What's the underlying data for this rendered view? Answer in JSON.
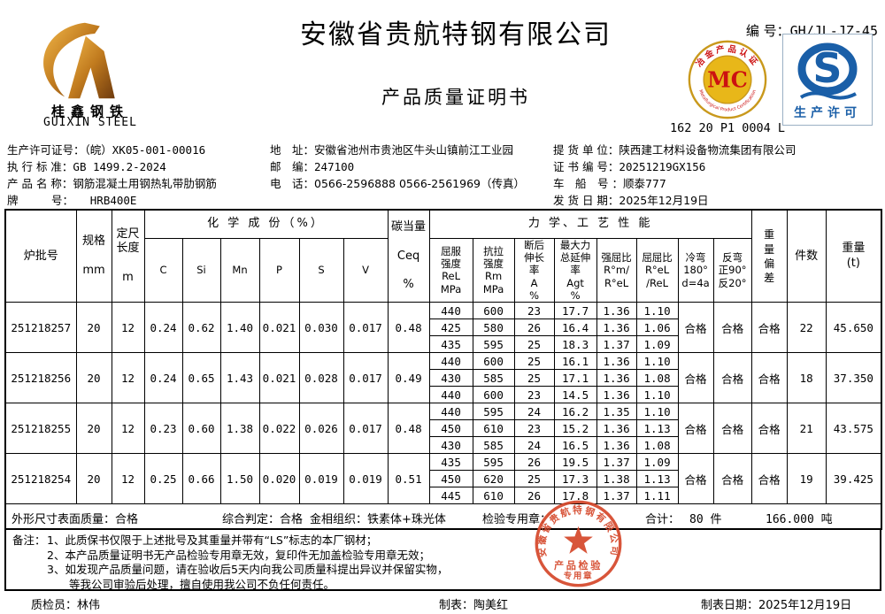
{
  "colors": {
    "stamp_red": "#d5472a",
    "mc_gold": "#d9a21a",
    "mc_red": "#cc1111",
    "qs_blue": "#1a5fa8",
    "logo_gold": "#c07a1e"
  },
  "header": {
    "company_name": "安徽省贵航特钢有限公司",
    "doc_title": "产品质量证明书",
    "doc_no_label": "编 号：",
    "doc_no_value": "GH/JL-JZ-45",
    "logo_text_cn": "桂鑫钢铁",
    "logo_text_en": "GUIXIN STEEL",
    "mc_letters": "MC",
    "mc_ring_top": "冶金产品认证",
    "mc_ring_bottom": "Metallurgical Product Certification",
    "mc_code": "162 20 P1 0004 L",
    "qs_letter": "S",
    "qs_caption": "生产许可"
  },
  "info": {
    "left": [
      {
        "label": "生产许可证号：",
        "value": "（皖）XK05-001-00016"
      },
      {
        "label": "执 行 标 准：",
        "value": "GB 1499.2-2024"
      },
      {
        "label": "产 品 名 称：",
        "value": "钢筋混凝土用钢热轧带肋钢筋"
      },
      {
        "label": "牌　　　号：",
        "value": "　　HRB400E"
      }
    ],
    "middle": [
      {
        "label": "地　址：",
        "value": "安徽省池州市贵池区牛头山镇前江工业园"
      },
      {
        "label": "邮　编：",
        "value": "247100"
      },
      {
        "label": "电　话：",
        "value": "0566-2596888  0566-2561969（传真）"
      }
    ],
    "right": [
      {
        "label": "提 货 单 位：",
        "value": "陕西建工材料设备物流集团有限公司"
      },
      {
        "label": "证 书 编 号：",
        "value": "20251219GX156"
      },
      {
        "label": "车　船　号 ：",
        "value": "顺泰777"
      },
      {
        "label": "发 货 日 期：",
        "value": "2025年12月19日"
      }
    ]
  },
  "table": {
    "group_chem": "化 学 成 份（%）",
    "group_mech": "力 学、工 艺 性 能",
    "head": {
      "heat": "炉批号",
      "spec": "规格\n\nmm",
      "length": "定尺\n长度\n\nm",
      "chem_cols": [
        "C",
        "Si",
        "Mn",
        "P",
        "S",
        "V"
      ],
      "ceq": "碳当量\n\nCeq\n\n%",
      "mech_cols": [
        "屈服\n强度\nReL\nMPa",
        "抗拉\n强度\nRm\nMPa",
        "断后\n伸长\n率\nA\n%",
        "最大力\n总延伸\n率\nAgt\n%",
        "强屈比\nR°m/\nR°eL",
        "屈屈比\nR°eL\n/ReL",
        "冷弯\n180°\nd=4a",
        "反弯\n正90°\n反20°"
      ],
      "weight_dev": "重\n量\n偏\n差",
      "pieces": "件数",
      "weight": "重量\n(t)"
    },
    "batches": [
      {
        "heat_no": "251218257",
        "spec": "20",
        "length": "12",
        "chem": [
          "0.24",
          "0.62",
          "1.40",
          "0.021",
          "0.030",
          "0.017"
        ],
        "ceq": "0.48",
        "mech": [
          [
            "440",
            "600",
            "23",
            "17.7",
            "1.36",
            "1.10"
          ],
          [
            "425",
            "580",
            "26",
            "16.4",
            "1.36",
            "1.06"
          ],
          [
            "435",
            "595",
            "25",
            "18.3",
            "1.37",
            "1.09"
          ]
        ],
        "cold_bend": "合格",
        "reverse_bend": "合格",
        "weight_dev": "合格",
        "pieces": "22",
        "weight": "45.650"
      },
      {
        "heat_no": "251218256",
        "spec": "20",
        "length": "12",
        "chem": [
          "0.24",
          "0.65",
          "1.43",
          "0.021",
          "0.028",
          "0.017"
        ],
        "ceq": "0.49",
        "mech": [
          [
            "440",
            "600",
            "25",
            "16.1",
            "1.36",
            "1.10"
          ],
          [
            "430",
            "585",
            "25",
            "17.1",
            "1.36",
            "1.08"
          ],
          [
            "440",
            "600",
            "23",
            "14.5",
            "1.36",
            "1.10"
          ]
        ],
        "cold_bend": "合格",
        "reverse_bend": "合格",
        "weight_dev": "合格",
        "pieces": "18",
        "weight": "37.350"
      },
      {
        "heat_no": "251218255",
        "spec": "20",
        "length": "12",
        "chem": [
          "0.23",
          "0.60",
          "1.38",
          "0.022",
          "0.026",
          "0.017"
        ],
        "ceq": "0.48",
        "mech": [
          [
            "440",
            "595",
            "24",
            "16.2",
            "1.35",
            "1.10"
          ],
          [
            "450",
            "610",
            "23",
            "15.2",
            "1.36",
            "1.13"
          ],
          [
            "430",
            "585",
            "24",
            "16.5",
            "1.36",
            "1.08"
          ]
        ],
        "cold_bend": "合格",
        "reverse_bend": "合格",
        "weight_dev": "合格",
        "pieces": "21",
        "weight": "43.575"
      },
      {
        "heat_no": "251218254",
        "spec": "20",
        "length": "12",
        "chem": [
          "0.25",
          "0.66",
          "1.50",
          "0.020",
          "0.019",
          "0.019"
        ],
        "ceq": "0.51",
        "mech": [
          [
            "435",
            "595",
            "26",
            "19.5",
            "1.37",
            "1.09"
          ],
          [
            "450",
            "620",
            "25",
            "17.3",
            "1.38",
            "1.13"
          ],
          [
            "445",
            "610",
            "26",
            "17.8",
            "1.37",
            "1.11"
          ]
        ],
        "cold_bend": "合格",
        "reverse_bend": "合格",
        "weight_dev": "合格",
        "pieces": "19",
        "weight": "39.425"
      }
    ]
  },
  "summary": {
    "surface": "外形尺寸表面质量：合格",
    "judgement": "综合判定：合格",
    "structure": "金相组织：铁素体+珠光体",
    "seal_label": "检验专用章：",
    "total_label": "合计：",
    "total_pieces": "80 件",
    "total_weight": "166.000  吨"
  },
  "stamp": {
    "ring_text": "安徽省贵航特钢有限公司",
    "line1": "产品检验",
    "line2": "专用章"
  },
  "remarks": {
    "label": "备注：",
    "lines": [
      "1、此质保书仅限于上述批号及其重量并带有“LS”标志的本厂钢材；",
      "2、本产品质量证明书无产品检验专用章无效，复印件无加盖检验专用章无效；",
      "3、如发现产品质量问题，请在验收后5天内向我公司质量科提出异议并保留实物，",
      "　　等我公司审验后处理，擅自使用我公司不负任何责任。"
    ]
  },
  "footer": {
    "inspector": "质检员：林伟",
    "preparer": "制表：陶美红",
    "date": "制表日期：2025年12月19日"
  }
}
